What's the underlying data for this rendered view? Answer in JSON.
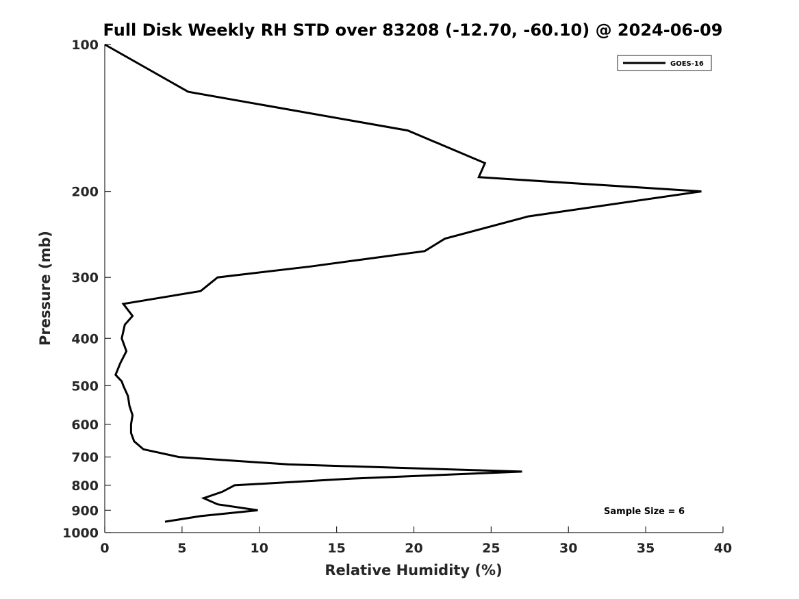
{
  "chart_data": {
    "type": "line",
    "title": "Full Disk Weekly RH STD over 83208 (-12.70, -60.10) @ 2024-06-09",
    "xlabel": "Relative Humidity (%)",
    "ylabel": "Pressure (mb)",
    "xlim": [
      0,
      40
    ],
    "ylim": [
      100,
      1000
    ],
    "y_scale": "log",
    "y_reversed": true,
    "x_ticks": [
      0,
      5,
      10,
      15,
      20,
      25,
      30,
      35,
      40
    ],
    "x_tick_labels": [
      "0",
      "5",
      "10",
      "15",
      "20",
      "25",
      "30",
      "35",
      "40"
    ],
    "y_ticks": [
      100,
      200,
      300,
      400,
      500,
      600,
      700,
      800,
      900,
      1000
    ],
    "y_tick_labels": [
      "100",
      "200",
      "300",
      "400",
      "500",
      "600",
      "700",
      "800",
      "900",
      "1000"
    ],
    "grid": false,
    "legend": {
      "position": "top-right",
      "entries": [
        "GOES-16"
      ]
    },
    "annotation": "Sample Size = 6",
    "series": [
      {
        "name": "GOES-16",
        "color": "#000000",
        "points": [
          [
            0.0,
            100
          ],
          [
            5.4,
            125
          ],
          [
            19.6,
            150
          ],
          [
            24.6,
            175
          ],
          [
            24.2,
            187
          ],
          [
            38.6,
            200
          ],
          [
            27.4,
            225
          ],
          [
            22.0,
            250
          ],
          [
            20.7,
            265
          ],
          [
            13.3,
            285
          ],
          [
            7.3,
            300
          ],
          [
            6.2,
            320
          ],
          [
            1.2,
            340
          ],
          [
            1.8,
            360
          ],
          [
            1.3,
            375
          ],
          [
            1.1,
            400
          ],
          [
            1.4,
            425
          ],
          [
            1.0,
            450
          ],
          [
            0.7,
            475
          ],
          [
            1.1,
            490
          ],
          [
            1.2,
            500
          ],
          [
            1.5,
            525
          ],
          [
            1.6,
            550
          ],
          [
            1.8,
            575
          ],
          [
            1.7,
            600
          ],
          [
            1.7,
            625
          ],
          [
            1.9,
            650
          ],
          [
            2.5,
            675
          ],
          [
            4.8,
            700
          ],
          [
            11.9,
            725
          ],
          [
            27.0,
            750
          ],
          [
            16.0,
            775
          ],
          [
            8.4,
            800
          ],
          [
            7.6,
            825
          ],
          [
            6.4,
            850
          ],
          [
            7.3,
            875
          ],
          [
            9.9,
            900
          ],
          [
            6.2,
            925
          ],
          [
            3.9,
            950
          ]
        ]
      }
    ]
  }
}
